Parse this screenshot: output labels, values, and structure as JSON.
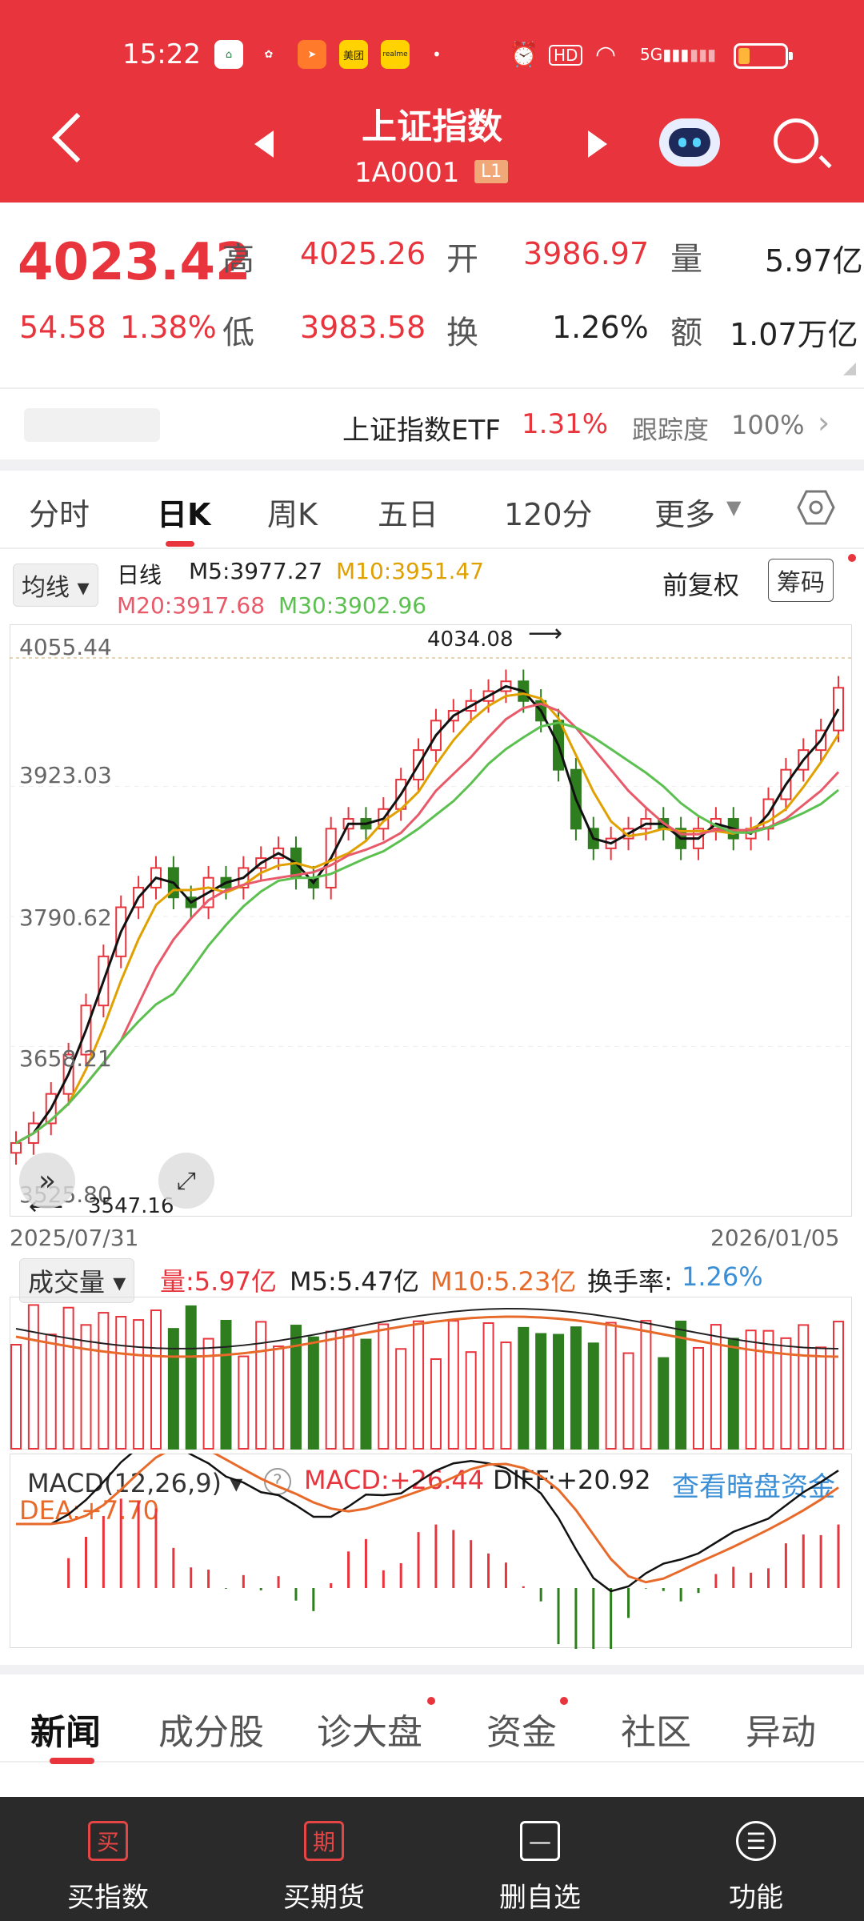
{
  "status": {
    "time": "15:22",
    "icons": [
      "hd-icon",
      "wifi-icon",
      "5g-signal-icon",
      "battery-icon"
    ],
    "app_badges": [
      "美团",
      "realme"
    ]
  },
  "header": {
    "title": "上证指数",
    "code": "1A0001",
    "level": "L1"
  },
  "quote": {
    "price": "4023.42",
    "change": "54.58",
    "change_pct": "1.38%",
    "high_label": "高",
    "high": "4025.26",
    "low_label": "低",
    "low": "3983.58",
    "open_label": "开",
    "open": "3986.97",
    "turnover_label": "换",
    "turnover": "1.26%",
    "volume_label": "量",
    "volume": "5.97亿",
    "amount_label": "额",
    "amount": "1.07万亿"
  },
  "etf": {
    "name": "上证指数ETF",
    "pct": "1.31%",
    "track_label": "跟踪度",
    "track": "100%"
  },
  "chart_tabs": [
    "分时",
    "日K",
    "周K",
    "五日",
    "120分",
    "更多"
  ],
  "kline": {
    "ma_chip": "均线",
    "period": "日线",
    "m5": "M5:3977.27",
    "m10": "M10:3951.47",
    "m20": "M20:3917.68",
    "m30": "M30:3902.96",
    "adjust": "前复权",
    "chips": "筹码",
    "y_ticks": [
      "4055.44",
      "3923.03",
      "3790.62",
      "3658.21",
      "3525.80"
    ],
    "max_label": "4034.08",
    "min_label": "3547.16",
    "date_start": "2025/07/31",
    "date_end": "2026/01/05"
  },
  "volume": {
    "chip": "成交量",
    "value": "量:5.97亿",
    "m5": "M5:5.47亿",
    "m10": "M10:5.23亿",
    "turn_label": "换手率:",
    "turn": "1.26%"
  },
  "macd": {
    "chip": "MACD(12,26,9)",
    "macd": "MACD:+26.44",
    "diff": "DIFF:+20.92",
    "dea": "DEA:+7.70",
    "link": "查看暗盘资金"
  },
  "bottom_tabs": [
    "新闻",
    "成分股",
    "诊大盘",
    "资金",
    "社区",
    "异动"
  ],
  "nav": [
    {
      "icon": "买",
      "label": "买指数"
    },
    {
      "icon": "期",
      "label": "买期货"
    },
    {
      "icon": "—",
      "label": "删自选"
    },
    {
      "icon": "☰",
      "label": "功能"
    }
  ],
  "chart_data": {
    "type": "candlestick",
    "x_range": [
      "2025/07/31",
      "2026/01/05"
    ],
    "ylim": [
      3525.8,
      4055.44
    ],
    "y_ticks": [
      4055.44,
      3923.03,
      3790.62,
      3658.21,
      3525.8
    ],
    "annotations": [
      {
        "label": "4034.08",
        "kind": "max"
      },
      {
        "label": "3547.16",
        "kind": "min"
      }
    ],
    "series": [
      {
        "name": "M5",
        "last": 3977.27,
        "color": "#111111"
      },
      {
        "name": "M10",
        "last": 3951.47,
        "color": "#e0a000"
      },
      {
        "name": "M20",
        "last": 3917.68,
        "color": "#e85a6a"
      },
      {
        "name": "M30",
        "last": 3902.96,
        "color": "#5cc050"
      }
    ],
    "approx_close_path": [
      3560,
      3580,
      3610,
      3650,
      3700,
      3750,
      3800,
      3820,
      3840,
      3810,
      3800,
      3830,
      3820,
      3840,
      3850,
      3860,
      3830,
      3820,
      3880,
      3890,
      3880,
      3900,
      3930,
      3960,
      3990,
      4000,
      4010,
      4020,
      4030,
      4010,
      3990,
      3940,
      3880,
      3860,
      3870,
      3880,
      3890,
      3880,
      3860,
      3880,
      3890,
      3870,
      3880,
      3910,
      3940,
      3960,
      3980,
      4023.42
    ],
    "colors": {
      "up": "#e8343c",
      "down": "#2e7d1e"
    }
  }
}
